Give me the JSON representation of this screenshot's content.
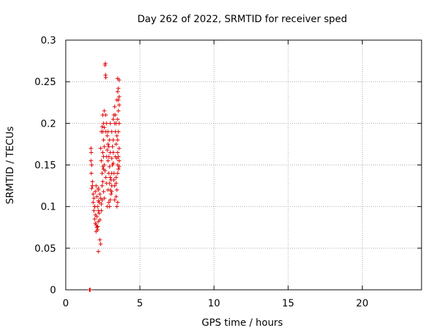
{
  "chart_data": {
    "type": "scatter",
    "title": "Day 262 of 2022, SRMTID for receiver sped",
    "xlabel": "GPS time / hours",
    "ylabel": "SRMTID / TECUs",
    "xlim": [
      0,
      24
    ],
    "ylim": [
      0,
      0.3
    ],
    "xticks": [
      0,
      5,
      10,
      15,
      20
    ],
    "xtick_labels": [
      "0",
      "5",
      "10",
      "15",
      "20"
    ],
    "yticks": [
      0,
      0.05,
      0.1,
      0.15,
      0.2,
      0.25,
      0.3
    ],
    "ytick_labels": [
      "0",
      "0.05",
      "0.1",
      "0.15",
      "0.2",
      "0.25",
      "0.3"
    ],
    "grid": true,
    "marker": "+",
    "color": "#e00000",
    "series": [
      {
        "name": "SRMTID",
        "points": [
          [
            1.6,
            0.0
          ],
          [
            1.62,
            0.0
          ],
          [
            1.65,
            0.0
          ],
          [
            1.7,
            0.17
          ],
          [
            1.72,
            0.165
          ],
          [
            1.7,
            0.155
          ],
          [
            1.75,
            0.15
          ],
          [
            1.72,
            0.14
          ],
          [
            1.8,
            0.13
          ],
          [
            1.75,
            0.122
          ],
          [
            1.8,
            0.125
          ],
          [
            1.85,
            0.115
          ],
          [
            1.9,
            0.11
          ],
          [
            1.85,
            0.105
          ],
          [
            1.95,
            0.1
          ],
          [
            1.9,
            0.095
          ],
          [
            2.0,
            0.09
          ],
          [
            1.95,
            0.085
          ],
          [
            2.0,
            0.08
          ],
          [
            2.05,
            0.078
          ],
          [
            2.1,
            0.075
          ],
          [
            2.15,
            0.072
          ],
          [
            2.2,
            0.082
          ],
          [
            2.1,
            0.088
          ],
          [
            2.2,
            0.095
          ],
          [
            2.15,
            0.1
          ],
          [
            2.25,
            0.105
          ],
          [
            2.2,
            0.107
          ],
          [
            2.05,
            0.125
          ],
          [
            2.0,
            0.118
          ],
          [
            2.1,
            0.112
          ],
          [
            2.2,
            0.12
          ],
          [
            2.3,
            0.115
          ],
          [
            2.35,
            0.11
          ],
          [
            2.4,
            0.103
          ],
          [
            2.4,
            0.095
          ],
          [
            2.3,
            0.06
          ],
          [
            2.35,
            0.055
          ],
          [
            2.2,
            0.046
          ],
          [
            2.45,
            0.125
          ],
          [
            2.5,
            0.13
          ],
          [
            2.45,
            0.14
          ],
          [
            2.55,
            0.145
          ],
          [
            2.6,
            0.15
          ],
          [
            2.55,
            0.16
          ],
          [
            2.5,
            0.165
          ],
          [
            2.6,
            0.172
          ],
          [
            2.55,
            0.18
          ],
          [
            2.5,
            0.19
          ],
          [
            2.6,
            0.195
          ],
          [
            2.55,
            0.2
          ],
          [
            2.5,
            0.21
          ],
          [
            2.6,
            0.215
          ],
          [
            2.7,
            0.21
          ],
          [
            2.75,
            0.2
          ],
          [
            2.7,
            0.19
          ],
          [
            2.8,
            0.185
          ],
          [
            2.85,
            0.175
          ],
          [
            2.8,
            0.168
          ],
          [
            2.9,
            0.16
          ],
          [
            2.85,
            0.155
          ],
          [
            2.95,
            0.148
          ],
          [
            2.9,
            0.14
          ],
          [
            3.0,
            0.135
          ],
          [
            2.95,
            0.128
          ],
          [
            3.0,
            0.12
          ],
          [
            3.05,
            0.115
          ],
          [
            2.9,
            0.105
          ],
          [
            2.8,
            0.1
          ],
          [
            3.0,
            0.108
          ],
          [
            3.1,
            0.125
          ],
          [
            3.05,
            0.132
          ],
          [
            3.1,
            0.14
          ],
          [
            3.15,
            0.15
          ],
          [
            3.1,
            0.158
          ],
          [
            3.2,
            0.165
          ],
          [
            3.15,
            0.172
          ],
          [
            3.2,
            0.18
          ],
          [
            3.1,
            0.19
          ],
          [
            3.0,
            0.2
          ],
          [
            3.2,
            0.205
          ],
          [
            3.3,
            0.2
          ],
          [
            3.25,
            0.21
          ],
          [
            3.3,
            0.22
          ],
          [
            3.35,
            0.21
          ],
          [
            3.4,
            0.2
          ],
          [
            3.35,
            0.19
          ],
          [
            3.45,
            0.185
          ],
          [
            3.4,
            0.175
          ],
          [
            3.5,
            0.165
          ],
          [
            3.45,
            0.158
          ],
          [
            3.5,
            0.15
          ],
          [
            3.55,
            0.145
          ],
          [
            3.5,
            0.14
          ],
          [
            3.6,
            0.155
          ],
          [
            3.55,
            0.16
          ],
          [
            3.6,
            0.17
          ],
          [
            3.5,
            0.18
          ],
          [
            3.55,
            0.19
          ],
          [
            3.6,
            0.2
          ],
          [
            3.5,
            0.205
          ],
          [
            3.55,
            0.215
          ],
          [
            3.6,
            0.222
          ],
          [
            3.55,
            0.228
          ],
          [
            3.6,
            0.232
          ],
          [
            3.5,
            0.238
          ],
          [
            3.55,
            0.242
          ],
          [
            3.6,
            0.252
          ],
          [
            3.5,
            0.254
          ],
          [
            3.4,
            0.128
          ],
          [
            3.45,
            0.12
          ],
          [
            3.4,
            0.112
          ],
          [
            3.5,
            0.105
          ],
          [
            3.45,
            0.1
          ],
          [
            3.3,
            0.125
          ],
          [
            3.25,
            0.132
          ],
          [
            2.7,
            0.255
          ],
          [
            2.68,
            0.258
          ],
          [
            2.65,
            0.27
          ],
          [
            2.67,
            0.272
          ],
          [
            2.4,
            0.19
          ],
          [
            2.45,
            0.196
          ],
          [
            2.35,
            0.17
          ],
          [
            2.75,
            0.16
          ],
          [
            2.65,
            0.143
          ],
          [
            2.7,
            0.135
          ],
          [
            2.75,
            0.128
          ],
          [
            2.85,
            0.12
          ],
          [
            2.6,
            0.11
          ],
          [
            2.55,
            0.118
          ],
          [
            2.45,
            0.108
          ],
          [
            2.25,
            0.092
          ],
          [
            2.3,
            0.084
          ],
          [
            2.15,
            0.076
          ],
          [
            2.05,
            0.07
          ],
          [
            2.5,
            0.148
          ],
          [
            2.4,
            0.155
          ],
          [
            2.95,
            0.18
          ],
          [
            2.85,
            0.19
          ],
          [
            3.25,
            0.14
          ],
          [
            3.2,
            0.152
          ],
          [
            3.35,
            0.16
          ],
          [
            3.0,
            0.165
          ],
          [
            2.9,
            0.172
          ],
          [
            2.95,
            0.1
          ],
          [
            3.1,
            0.118
          ],
          [
            3.3,
            0.108
          ],
          [
            3.4,
            0.135
          ],
          [
            3.6,
            0.148
          ],
          [
            3.45,
            0.228
          ],
          [
            2.2,
            0.122
          ],
          [
            1.95,
            0.1
          ]
        ]
      }
    ]
  }
}
